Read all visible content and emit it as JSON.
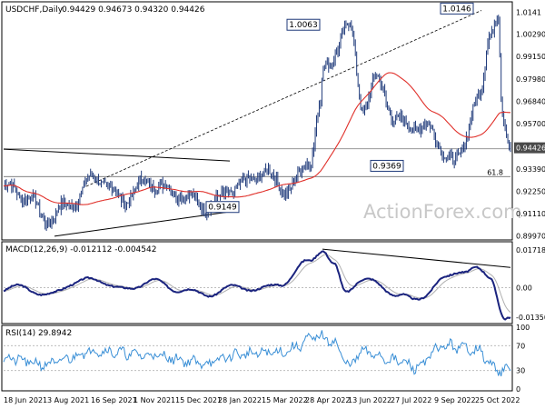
{
  "header": {
    "symbol": "USDCHF,Daily",
    "ohlc": "0.94429 0.94673 0.94320 0.94426",
    "macd_label": "MACD(12,26,9) -0.012112 -0.004542",
    "rsi_label": "RSI(14) 29.8942",
    "watermark": "ActionForex.com"
  },
  "chart_data": [
    {
      "type": "line",
      "name": "price-panel",
      "series": [
        {
          "name": "USDCHF Daily",
          "kind": "ohlc",
          "color": "#1f3a7a",
          "anchors": [
            [
              "18 Jun 2021",
              0.925
            ],
            [
              "Jul 2021",
              0.92
            ],
            [
              "3 Aug 2021",
              0.908
            ],
            [
              "Aug 2021",
              0.915
            ],
            [
              "16 Sep 2021",
              0.93
            ],
            [
              "Oct 2021",
              0.918
            ],
            [
              "1 Nov 2021",
              0.927
            ],
            [
              "Nov 2021",
              0.922
            ],
            [
              "15 Dec 2021",
              0.9149
            ],
            [
              "Jan 2022",
              0.925
            ],
            [
              "28 Jan 2022",
              0.932
            ],
            [
              "Feb 2022",
              0.923
            ],
            [
              "15 Mar 2022",
              0.94
            ],
            [
              "Apr 2022",
              0.965
            ],
            [
              "28 Apr 2022",
              0.985
            ],
            [
              "May 2022",
              1.0063
            ],
            [
              "Jun 2022",
              0.965
            ],
            [
              "13 Jun 2022",
              0.98
            ],
            [
              "Jul 2022",
              0.958
            ],
            [
              "27 Jul 2022",
              0.955
            ],
            [
              "Aug 2022",
              0.9369
            ],
            [
              "9 Sep 2022",
              0.97
            ],
            [
              "Oct 2022",
              1.005
            ],
            [
              "25 Oct 2022",
              1.0146
            ],
            [
              "Nov 2022",
              0.96
            ],
            [
              "End",
              0.9443
            ]
          ]
        },
        {
          "name": "MA",
          "kind": "line",
          "color": "#e0302a"
        }
      ],
      "price_labels": [
        "0.9369",
        "1.0063",
        "1.0146",
        "0.9149"
      ],
      "current_price": "0.94426",
      "fib_label": "61.8",
      "yticks": [
        1.0141,
        1.0029,
        0.9915,
        0.9798,
        0.9684,
        0.957,
        0.94426,
        0.9339,
        0.9225,
        0.9111,
        0.8997
      ],
      "ytick_labels": [
        "1.0141",
        "1.00290",
        "0.99150",
        "0.97980",
        "0.96840",
        "0.95700",
        "0.94426",
        "0.93390",
        "0.92250",
        "0.91110",
        "0.89970"
      ],
      "ylim": [
        0.8985,
        1.0185
      ]
    },
    {
      "type": "line",
      "name": "macd-panel",
      "series": [
        {
          "name": "MACD",
          "color": "#1a237e",
          "anchors": [
            [
              "18 Jun 2021",
              -0.0015
            ],
            [
              "Jul 2021",
              0.001
            ],
            [
              "3 Aug 2021",
              -0.004
            ],
            [
              "Sep 2021",
              0.002
            ],
            [
              "16 Sep 2021",
              0.004
            ],
            [
              "Oct 2021",
              -0.001
            ],
            [
              "1 Nov 2021",
              0.003
            ],
            [
              "Nov 2021",
              -0.001
            ],
            [
              "15 Dec 2021",
              -0.003
            ],
            [
              "28 Jan 2022",
              0.0005
            ],
            [
              "Feb 2022",
              -0.001
            ],
            [
              "15 Mar 2022",
              0.002
            ],
            [
              "Apr 2022",
              0.012
            ],
            [
              "28 Apr 2022",
              0.0175
            ],
            [
              "May 2022",
              0.01
            ],
            [
              "Jun 2022",
              -0.002
            ],
            [
              "13 Jun 2022",
              0.004
            ],
            [
              "27 Jul 2022",
              -0.003
            ],
            [
              "Aug 2022",
              -0.006
            ],
            [
              "9 Sep 2022",
              0.004
            ],
            [
              "Oct 2022",
              0.008
            ],
            [
              "25 Oct 2022",
              0.009
            ],
            [
              "Nov 2022",
              0.004
            ],
            [
              "End",
              -0.0135
            ]
          ]
        },
        {
          "name": "Signal",
          "color": "#b0b0b0"
        }
      ],
      "yticks": [
        0.017184,
        0.0,
        -0.013507
      ],
      "ytick_labels": [
        "0.017184",
        "0.00",
        "-0.013507"
      ],
      "ylim": [
        -0.0155,
        0.0192
      ]
    },
    {
      "type": "line",
      "name": "rsi-panel",
      "series": [
        {
          "name": "RSI",
          "color": "#3a8fd6",
          "anchors": [
            [
              "18 Jun 2021",
              50
            ],
            [
              "3 Aug 2021",
              40
            ],
            [
              "16 Sep 2021",
              62
            ],
            [
              "1 Nov 2021",
              55
            ],
            [
              "15 Dec 2021",
              42
            ],
            [
              "28 Jan 2022",
              56
            ],
            [
              "15 Mar 2022",
              60
            ],
            [
              "28 Apr 2022",
              85
            ],
            [
              "May 2022",
              78
            ],
            [
              "Jun 2022",
              38
            ],
            [
              "13 Jun 2022",
              60
            ],
            [
              "27 Jul 2022",
              45
            ],
            [
              "Aug 2022",
              35
            ],
            [
              "9 Sep 2022",
              70
            ],
            [
              "25 Oct 2022",
              65
            ],
            [
              "Nov 2022",
              32
            ],
            [
              "End",
              29.9
            ]
          ]
        }
      ],
      "yticks": [
        100,
        70,
        30,
        0
      ],
      "ytick_labels": [
        "100",
        "70",
        "30",
        "0"
      ],
      "ylim": [
        0,
        100
      ]
    }
  ],
  "xaxis": {
    "labels": [
      "18 Jun 2021",
      "3 Aug 2021",
      "16 Sep 2021",
      "1 Nov 2021",
      "15 Dec 2021",
      "28 Jan 2022",
      "15 Mar 2022",
      "28 Apr 2022",
      "13 Jun 2022",
      "27 Jul 2022",
      "9 Sep 2022",
      "25 Oct 2022"
    ]
  }
}
